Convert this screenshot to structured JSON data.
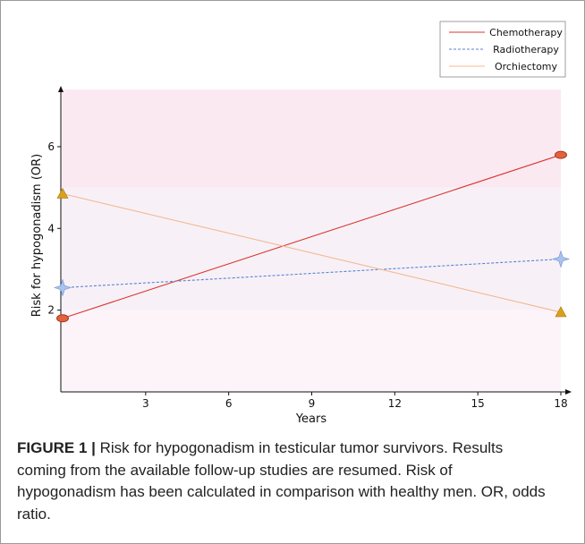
{
  "chart_data": {
    "type": "line",
    "xlabel": "Years",
    "ylabel": "Risk for hypogonadism (OR)",
    "xlim": [
      0,
      18
    ],
    "ylim": [
      0,
      7.4
    ],
    "xticks": [
      3,
      6,
      9,
      12,
      15,
      18
    ],
    "yticks": [
      2,
      4,
      6
    ],
    "bands": [
      {
        "y0": 5,
        "y1": 7.4,
        "color": "#fbe9f2"
      },
      {
        "y0": 2,
        "y1": 5,
        "color": "#f7f1f7"
      },
      {
        "y0": 0,
        "y1": 2,
        "color": "#fdf4fa"
      }
    ],
    "legend_position": "top-right",
    "series": [
      {
        "name": "Chemotherapy",
        "x": [
          0,
          18
        ],
        "y": [
          1.8,
          5.8
        ],
        "color": "#d9372e",
        "dash": "solid",
        "marker": "ellipse"
      },
      {
        "name": "Radiotherapy",
        "x": [
          0,
          18
        ],
        "y": [
          2.55,
          3.25
        ],
        "color": "#5b82d0",
        "dash": "dashed",
        "marker": "star"
      },
      {
        "name": "Orchiectomy",
        "x": [
          0,
          18
        ],
        "y": [
          4.85,
          1.95
        ],
        "color": "#f4b892",
        "dash": "solid",
        "marker": "triangle"
      }
    ]
  },
  "caption": {
    "label": "FIGURE 1 |",
    "text": " Risk for hypogonadism in testicular tumor survivors. Results coming from the available follow-up studies are resumed. Risk of hypogonadism has been calculated in comparison with healthy men. OR, odds ratio."
  }
}
